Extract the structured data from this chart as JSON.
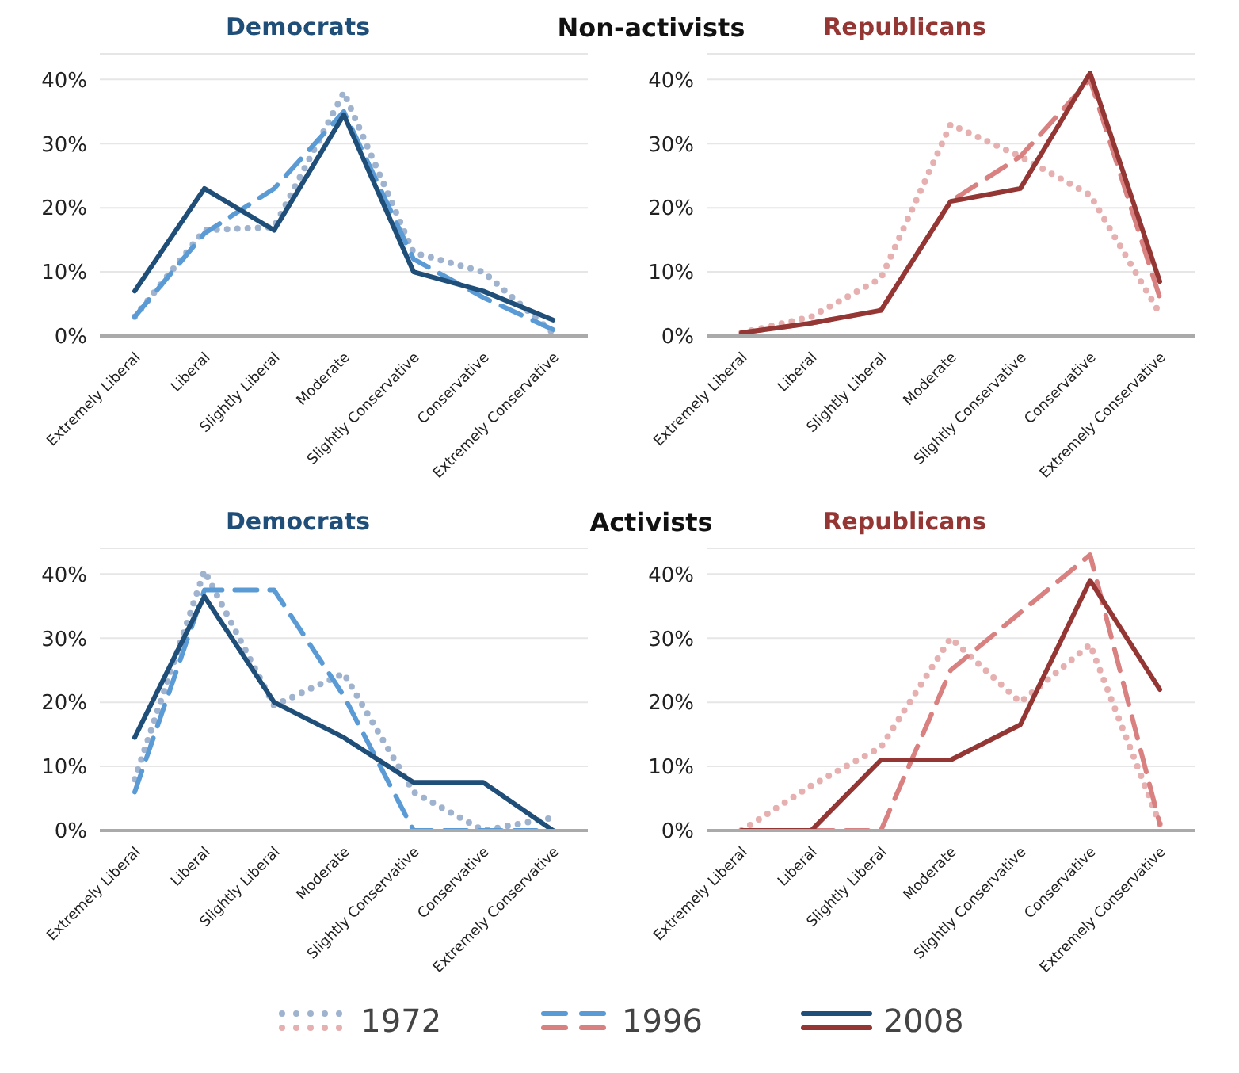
{
  "chart_data": [
    {
      "type": "line",
      "title": "Democrats",
      "annotations": [
        "Non-activists"
      ],
      "categories": [
        "Extremely Liberal",
        "Liberal",
        "Slightly Liberal",
        "Moderate",
        "Slightly Conservative",
        "Conservative",
        "Extremely Conservative"
      ],
      "ylim": [
        0,
        44
      ],
      "yticks": [
        {
          "value": 0,
          "label": "0%"
        },
        {
          "value": 10,
          "label": "10%"
        },
        {
          "value": 20,
          "label": "20%"
        },
        {
          "value": 30,
          "label": "30%"
        },
        {
          "value": 40,
          "label": "40%"
        }
      ],
      "grid": "y",
      "legend": "bottom",
      "marker": "none",
      "series": [
        {
          "name": "1972",
          "color": "#9fb3cf",
          "line_style": "dotted",
          "values": [
            3,
            16.5,
            17,
            38,
            13,
            10,
            0.5
          ]
        },
        {
          "name": "1996",
          "color": "#5b9bd5",
          "line_style": "dashed",
          "values": [
            3,
            16,
            23,
            35,
            12,
            6,
            1
          ]
        },
        {
          "name": "2008",
          "color": "#1f4e79",
          "line_style": "solid",
          "values": [
            7,
            23,
            16.5,
            34.5,
            10,
            7,
            2.5
          ]
        }
      ]
    },
    {
      "type": "line",
      "title": "Republicans",
      "categories": [
        "Extremely Liberal",
        "Liberal",
        "Slightly Liberal",
        "Moderate",
        "Slightly Conservative",
        "Conservative",
        "Extremely Conservative"
      ],
      "ylim": [
        0,
        44
      ],
      "yticks": [
        {
          "value": 0,
          "label": "0%"
        },
        {
          "value": 10,
          "label": "10%"
        },
        {
          "value": 20,
          "label": "20%"
        },
        {
          "value": 30,
          "label": "30%"
        },
        {
          "value": 40,
          "label": "40%"
        }
      ],
      "grid": "y",
      "marker": "none",
      "series": [
        {
          "color": "#e6b0b0",
          "line_style": "dotted",
          "values": [
            0.5,
            3,
            9,
            33,
            28,
            22,
            3.5
          ]
        },
        {
          "color": "#d98080",
          "line_style": "dashed",
          "values": [
            0.5,
            2,
            4,
            21,
            28,
            40,
            6
          ]
        },
        {
          "color": "#943634",
          "line_style": "solid",
          "values": [
            0.5,
            2,
            4,
            21,
            23,
            41,
            8.5
          ]
        }
      ]
    },
    {
      "type": "line",
      "title": "Democrats",
      "annotations": [
        "Activists"
      ],
      "categories": [
        "Extremely Liberal",
        "Liberal",
        "Slightly Liberal",
        "Moderate",
        "Slightly Conservative",
        "Conservative",
        "Extremely Conservative"
      ],
      "ylim": [
        0,
        44
      ],
      "yticks": [
        {
          "value": 0,
          "label": "0%"
        },
        {
          "value": 10,
          "label": "10%"
        },
        {
          "value": 20,
          "label": "20%"
        },
        {
          "value": 30,
          "label": "30%"
        },
        {
          "value": 40,
          "label": "40%"
        }
      ],
      "grid": "y",
      "legend": "bottom",
      "marker": "none",
      "series": [
        {
          "name": "1972",
          "color": "#9fb3cf",
          "line_style": "dotted",
          "values": [
            8,
            40.5,
            19.5,
            24.5,
            6,
            0,
            2
          ]
        },
        {
          "name": "1996",
          "color": "#5b9bd5",
          "line_style": "dashed",
          "values": [
            6,
            37.5,
            37.5,
            21,
            0,
            0,
            0
          ]
        },
        {
          "name": "2008",
          "color": "#1f4e79",
          "line_style": "solid",
          "values": [
            14.5,
            36.5,
            20,
            14.5,
            7.5,
            7.5,
            0
          ]
        }
      ]
    },
    {
      "type": "line",
      "title": "Republicans",
      "categories": [
        "Extremely Liberal",
        "Liberal",
        "Slightly Liberal",
        "Moderate",
        "Slightly Conservative",
        "Conservative",
        "Extremely Conservative"
      ],
      "ylim": [
        0,
        44
      ],
      "yticks": [
        {
          "value": 0,
          "label": "0%"
        },
        {
          "value": 10,
          "label": "10%"
        },
        {
          "value": 20,
          "label": "20%"
        },
        {
          "value": 30,
          "label": "30%"
        },
        {
          "value": 40,
          "label": "40%"
        }
      ],
      "grid": "y",
      "marker": "none",
      "series": [
        {
          "color": "#e6b0b0",
          "line_style": "dotted",
          "values": [
            0,
            7,
            13,
            30,
            20,
            29,
            1
          ]
        },
        {
          "color": "#d98080",
          "line_style": "dashed",
          "values": [
            0,
            0,
            0,
            25,
            34,
            43,
            1
          ]
        },
        {
          "color": "#943634",
          "line_style": "solid",
          "values": [
            0,
            0,
            11,
            11,
            16.5,
            39,
            22
          ]
        }
      ]
    }
  ]
}
